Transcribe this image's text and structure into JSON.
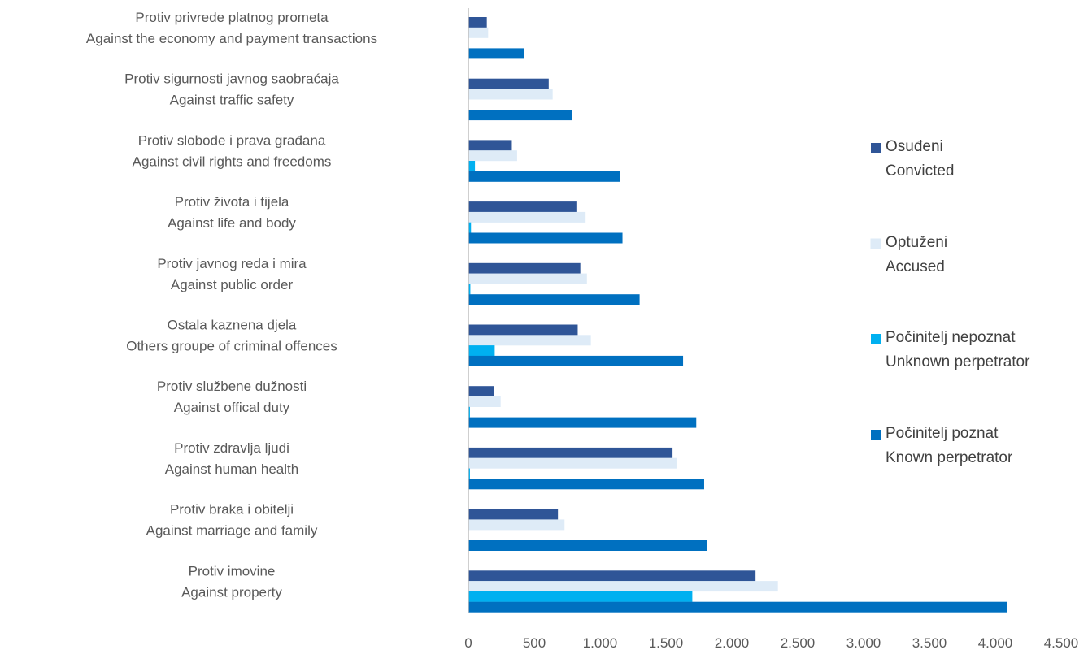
{
  "chart_data": {
    "type": "bar",
    "orientation": "horizontal",
    "categories": [
      {
        "line1": "Protiv privrede platnog prometa",
        "line2": "Against the economy and payment transactions"
      },
      {
        "line1": "Protiv sigurnosti javnog saobraćaja",
        "line2": "Against traffic safety"
      },
      {
        "line1": "Protiv slobode i prava građana",
        "line2": "Against civil rights and freedoms"
      },
      {
        "line1": "Protiv života i tijela",
        "line2": "Against life and body"
      },
      {
        "line1": "Protiv javnog reda i mira",
        "line2": "Against public order"
      },
      {
        "line1": "Ostala kaznena djela",
        "line2": "Others groupe of criminal offences"
      },
      {
        "line1": "Protiv službene dužnosti",
        "line2": "Against offical duty"
      },
      {
        "line1": "Protiv zdravlja ljudi",
        "line2": "Against human health"
      },
      {
        "line1": "Protiv braka i obitelji",
        "line2": "Against marriage and family"
      },
      {
        "line1": "Protiv imovine",
        "line2": "Against property"
      }
    ],
    "series": [
      {
        "name": "Osuđeni",
        "name2": "Convicted",
        "color": "#2F5597",
        "values": [
          140,
          610,
          330,
          820,
          850,
          830,
          195,
          1550,
          680,
          2180
        ]
      },
      {
        "name": "Optuženi",
        "name2": "Accused",
        "color": "#DEEBF7",
        "values": [
          150,
          640,
          370,
          890,
          900,
          930,
          245,
          1580,
          730,
          2350
        ]
      },
      {
        "name": "Počinitelj nepoznat",
        "name2": "Unknown perpetrator",
        "color": "#00B0F0",
        "values": [
          0,
          0,
          50,
          20,
          15,
          200,
          12,
          12,
          0,
          1700
        ]
      },
      {
        "name": "Počinitelj poznat",
        "name2": "Known perpetrator",
        "color": "#0070C0",
        "values": [
          420,
          790,
          1150,
          1170,
          1300,
          1630,
          1730,
          1790,
          1810,
          4090
        ]
      }
    ],
    "xlim": [
      0,
      4500
    ],
    "xticks": [
      0,
      500,
      1000,
      1500,
      2000,
      2500,
      3000,
      3500,
      4000,
      4500
    ],
    "xtick_labels": [
      "0",
      "500",
      "1.000",
      "1.500",
      "2.000",
      "2.500",
      "3.000",
      "3.500",
      "4.000",
      "4.500"
    ],
    "grid": false,
    "legend_position": "right"
  }
}
